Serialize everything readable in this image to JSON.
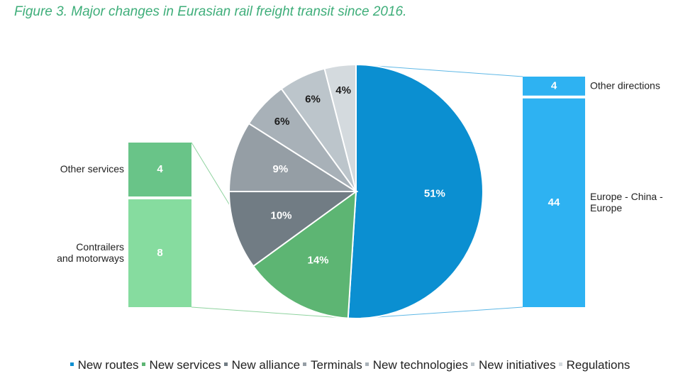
{
  "title": "Figure 3. Major changes in Eurasian rail freight transit since 2016.",
  "colors": {
    "title": "#3fae7a",
    "new_routes": "#0b8fd1",
    "new_services": "#5db573",
    "new_alliance": "#717c84",
    "terminals": "#959ea5",
    "new_technologies": "#a8b1b8",
    "new_initiatives": "#bcc5cb",
    "regulations": "#d4dade",
    "bar_right": "#2eb2f2",
    "bar_left_top": "#69c488",
    "bar_left_bottom": "#86dc9f",
    "connector_right": "#5fb8e6",
    "connector_left": "#8fd39f"
  },
  "chart_data": {
    "type": "pie",
    "slices": [
      {
        "name": "New routes",
        "value": 51,
        "label": "51%",
        "color": "#0b8fd1"
      },
      {
        "name": "New services",
        "value": 14,
        "label": "14%",
        "color": "#5db573"
      },
      {
        "name": "New alliance",
        "value": 10,
        "label": "10%",
        "color": "#717c84"
      },
      {
        "name": "Terminals",
        "value": 9,
        "label": "9%",
        "color": "#959ea5"
      },
      {
        "name": "New technologies",
        "value": 6,
        "label": "6%",
        "color": "#a8b1b8"
      },
      {
        "name": "New initiatives",
        "value": 6,
        "label": "6%",
        "color": "#bcc5cb"
      },
      {
        "name": "Regulations",
        "value": 4,
        "label": "4%",
        "color": "#d4dade"
      }
    ],
    "breakdowns": {
      "right": {
        "of": "New routes",
        "segments": [
          {
            "name": "Other directions",
            "value": 4,
            "label": "4"
          },
          {
            "name": "Europe - China - Europe",
            "value": 44,
            "label": "44"
          }
        ]
      },
      "left": {
        "of": "New services",
        "segments": [
          {
            "name": "Other services",
            "value": 4,
            "label": "4"
          },
          {
            "name": "Contrailers and motorways",
            "value": 8,
            "label": "8"
          }
        ]
      }
    },
    "legend": {
      "placement": "bottom",
      "items": [
        "New routes",
        "New services",
        "New alliance",
        "Terminals",
        "New technologies",
        "New initiatives",
        "Regulations"
      ]
    }
  }
}
